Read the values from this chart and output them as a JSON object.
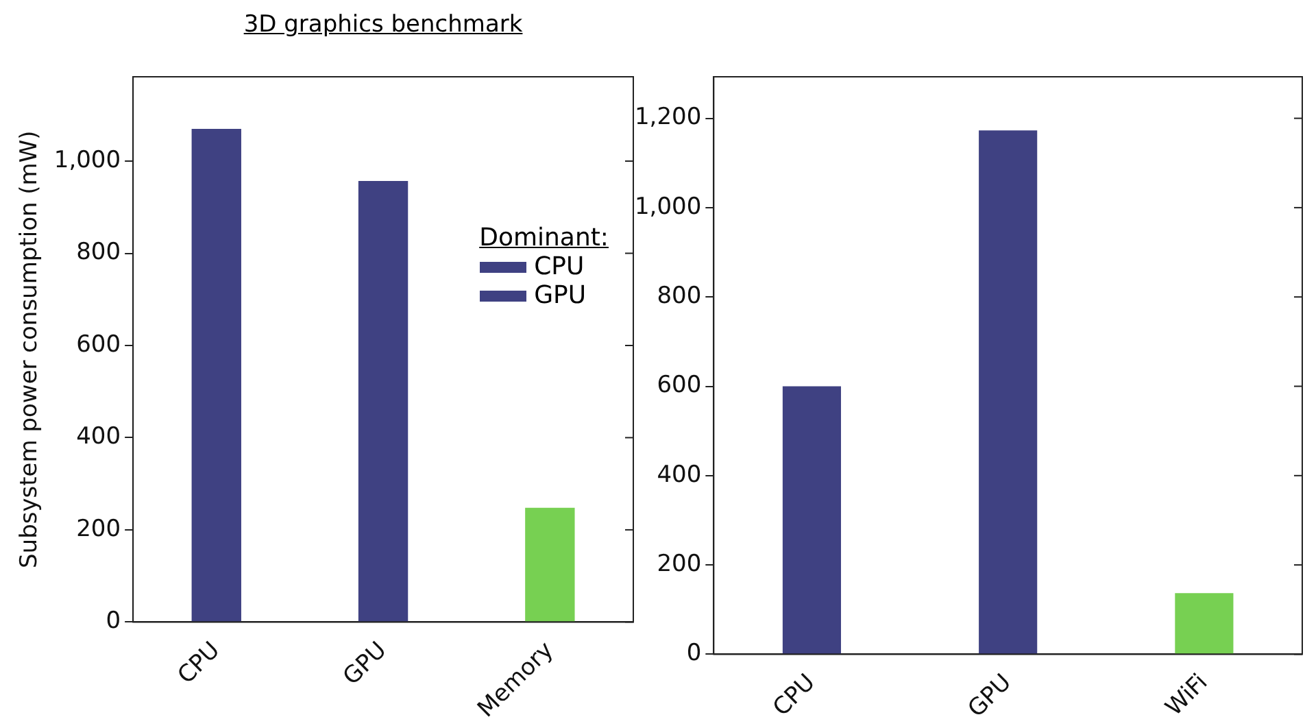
{
  "chart_data": [
    {
      "type": "bar",
      "title": "3D graphics benchmark",
      "ylabel": "Subsystem power consumption (mW)",
      "categories": [
        "CPU",
        "GPU",
        "Memory"
      ],
      "stacked": true,
      "legend": "right",
      "legend_title": "Dominant:",
      "ylim": [
        0,
        1183
      ],
      "yticks": [
        0,
        {
          "value": 200,
          "label": "200"
        },
        {
          "value": 400,
          "label": "400"
        },
        {
          "value": 600,
          "label": "600"
        },
        {
          "value": 800,
          "label": "800"
        },
        {
          "value": 1000,
          "label": "1,000"
        }
      ],
      "series": [
        {
          "name": "CPU",
          "color": "#3f4182",
          "values": [
            1070,
            null,
            null
          ]
        },
        {
          "name": "GPU",
          "color": "#3f4182",
          "values": [
            null,
            957,
            null
          ]
        },
        {
          "color": "#77d052",
          "values": [
            null,
            null,
            248
          ]
        }
      ]
    },
    {
      "type": "bar",
      "categories": [
        "CPU",
        "GPU",
        "WiFi"
      ],
      "values": [
        600,
        1173,
        137
      ],
      "colors": [
        "#3f4182",
        "#3f4182",
        "#77d052"
      ],
      "ylim": [
        0,
        1293
      ],
      "yticks": [
        0,
        {
          "value": 200,
          "label": "200"
        },
        {
          "value": 400,
          "label": "400"
        },
        {
          "value": 600,
          "label": "600"
        },
        {
          "value": 800,
          "label": "800"
        },
        {
          "value": 1000,
          "label": "1,000"
        },
        {
          "value": 1200,
          "label": "1,200"
        }
      ]
    }
  ]
}
